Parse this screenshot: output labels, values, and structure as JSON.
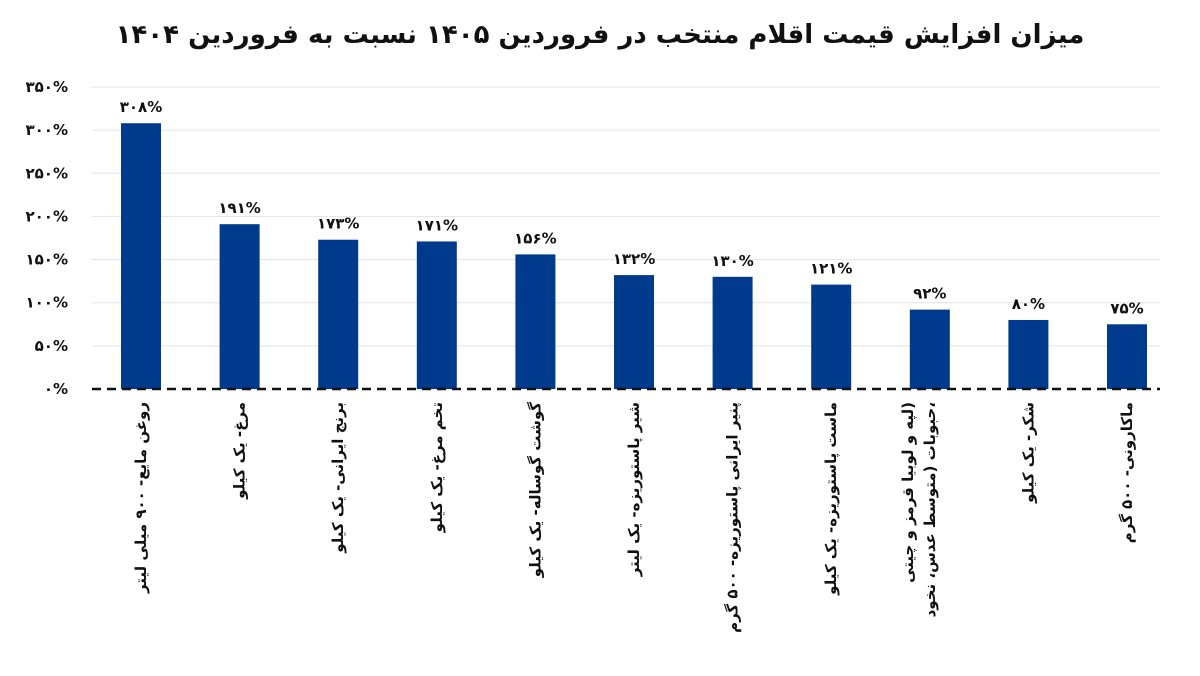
{
  "chart_data": {
    "type": "bar",
    "title": "میزان افزایش قیمت اقلام منتخب در فروردین ۱۴۰۵ نسبت به فروردین ۱۴۰۴",
    "xlabel": "",
    "ylabel": "",
    "ylim": [
      0,
      350
    ],
    "yticks": [
      0,
      50,
      100,
      150,
      200,
      250,
      300,
      350
    ],
    "ytick_labels": [
      "۰%",
      "۵۰%",
      "۱۰۰%",
      "۱۵۰%",
      "۲۰۰%",
      "۲۵۰%",
      "۳۰۰%",
      "۳۵۰%"
    ],
    "categories": [
      [
        "روغن مایع- ۹۰۰ میلی لیتر"
      ],
      [
        "مرغ- یک کیلو"
      ],
      [
        "برنج ایرانی- یک کیلو"
      ],
      [
        "تخم مرغ- یک کیلو"
      ],
      [
        "گوشت گوساله- یک کیلو"
      ],
      [
        "شیر پاستوریزه- یک لیتر"
      ],
      [
        "پنیر ایرانی پاستوریزه- ۵۰۰ گرم"
      ],
      [
        "ماست پاستوریزه- یک کیلو"
      ],
      [
        "حبوبات (متوسط عدس، نخود،",
        "لپه و لوبیا قرمز و چیتی)"
      ],
      [
        "شکر- یک کیلو"
      ],
      [
        "ماکارونی- ۵۰۰ گرم"
      ]
    ],
    "values": [
      308,
      191,
      173,
      171,
      156,
      132,
      130,
      121,
      92,
      80,
      75
    ],
    "data_labels": [
      "۳۰۸%",
      "۱۹۱%",
      "۱۷۳%",
      "۱۷۱%",
      "۱۵۶%",
      "۱۳۲%",
      "۱۳۰%",
      "۱۲۱%",
      "۹۲%",
      "۸۰%",
      "۷۵%"
    ],
    "bar_color": "#003a8c",
    "grid": "horizontal",
    "legend": "none"
  }
}
